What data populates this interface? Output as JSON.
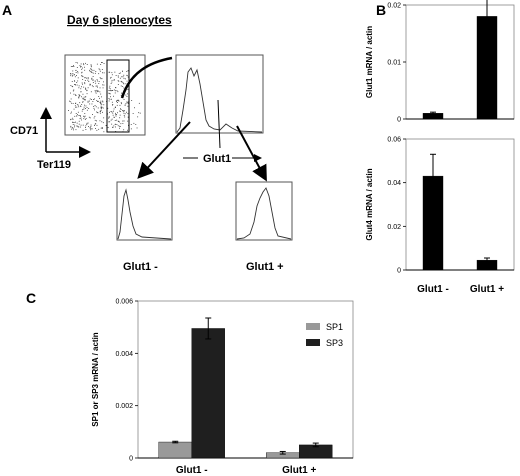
{
  "panels": {
    "a_label": "A",
    "b_label": "B",
    "c_label": "C"
  },
  "flow": {
    "title": "Day 6  splenocytes",
    "y_marker": "CD71",
    "x_marker": "Ter119",
    "hist_axis_label": "Glut1",
    "neg_label": "Glut1 -",
    "pos_label": "Glut1 +"
  },
  "chart_data": [
    {
      "panel": "B-top",
      "type": "bar",
      "categories": [
        "Glut1 -",
        "Glut1 +"
      ],
      "values": [
        0.001,
        0.018
      ],
      "errors": [
        0.0002,
        0.003
      ],
      "ylabel": "Glut1 mRNA / actin",
      "ylim": [
        0,
        0.02
      ],
      "yticks": [
        "0",
        "0.01",
        "0.02"
      ],
      "color": "#000000"
    },
    {
      "panel": "B-bottom",
      "type": "bar",
      "categories": [
        "Glut1 -",
        "Glut1 +"
      ],
      "values": [
        0.043,
        0.0045
      ],
      "errors": [
        0.01,
        0.001
      ],
      "ylabel": "Glut4 mRNA / actin",
      "ylim": [
        0,
        0.06
      ],
      "yticks": [
        "0",
        "0.02",
        "0.04",
        "0.06"
      ],
      "color": "#000000"
    },
    {
      "panel": "C",
      "type": "bar",
      "categories": [
        "Glut1 -",
        "Glut1 +"
      ],
      "series": [
        {
          "name": "SP1",
          "values": [
            0.00061,
            0.0002
          ],
          "errors": [
            3e-05,
            5e-05
          ],
          "color": "#999999"
        },
        {
          "name": "SP3",
          "values": [
            0.00495,
            0.0005
          ],
          "errors": [
            0.0004,
            7e-05
          ],
          "color": "#1f1f1f"
        }
      ],
      "ylabel": "SP1 or SP3 mRNA / actin",
      "ylim": [
        0,
        0.006
      ],
      "yticks": [
        "0",
        "0.002",
        "0.004",
        "0.006"
      ]
    }
  ]
}
